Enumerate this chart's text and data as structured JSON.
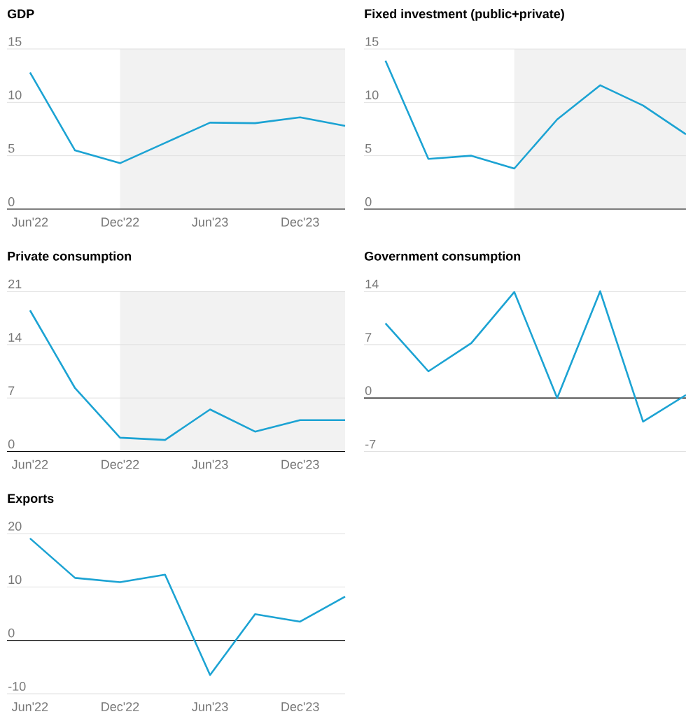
{
  "chart_data": [
    {
      "type": "line",
      "title": "GDP",
      "x": [
        "2022-06",
        "2022-09",
        "2022-12",
        "2023-03",
        "2023-06",
        "2023-09",
        "2023-12",
        "2024-03"
      ],
      "xlim": [
        "2022-04-15",
        "2024-03"
      ],
      "xticks": [
        {
          "value": "2022-06",
          "label": "Jun'22"
        },
        {
          "value": "2022-12",
          "label": "Dec'22"
        },
        {
          "value": "2023-06",
          "label": "Jun'23"
        },
        {
          "value": "2023-12",
          "label": "Dec'23"
        }
      ],
      "ylim": [
        0,
        15
      ],
      "yticks": [
        0,
        5,
        10,
        15
      ],
      "grid": "y",
      "bands": [
        {
          "axis": "x",
          "from": "2022-12",
          "to": "2024-03",
          "color": "#f2f2f2"
        }
      ],
      "series": [
        {
          "color": "#1ca3d3",
          "values": [
            12.8,
            5.5,
            4.3,
            6.2,
            8.1,
            8.05,
            8.6,
            7.8
          ]
        }
      ]
    },
    {
      "type": "line",
      "title": "Fixed investment (public+private)",
      "categories": [
        null,
        null,
        null,
        null,
        null,
        null,
        null,
        null
      ],
      "ylim": [
        0,
        15
      ],
      "yticks": [
        0,
        5,
        10,
        15
      ],
      "grid": "y",
      "tick_labels": "y",
      "series": [
        {
          "color": "#1ca3d3",
          "values": [
            13.9,
            4.7,
            5.0,
            3.8,
            8.4,
            11.6,
            9.7,
            7.0
          ]
        }
      ]
    },
    {
      "type": "line",
      "title": "Private consumption",
      "x": [
        "2022-06",
        "2022-09",
        "2022-12",
        "2023-03",
        "2023-06",
        "2023-09",
        "2023-12",
        "2024-03"
      ],
      "xlim": [
        "2022-04-15",
        "2024-03"
      ],
      "xticks": [
        {
          "value": "2022-06",
          "label": "Jun'22"
        },
        {
          "value": "2022-12",
          "label": "Dec'22"
        },
        {
          "value": "2023-06",
          "label": "Jun'23"
        },
        {
          "value": "2023-12",
          "label": "Dec'23"
        }
      ],
      "ylim": [
        0,
        21
      ],
      "yticks": [
        0,
        7,
        14,
        21
      ],
      "grid": "y",
      "bands": [
        {
          "axis": "x",
          "from": "2022-12",
          "to": "2024-03",
          "color": "#f2f2f2"
        }
      ],
      "series": [
        {
          "color": "#1ca3d3",
          "values": [
            18.5,
            8.3,
            1.8,
            1.5,
            5.5,
            2.6,
            4.1,
            4.1
          ]
        }
      ]
    },
    {
      "type": "line",
      "title": "Government consumption",
      "categories": [
        null,
        null,
        null,
        null,
        null,
        null,
        null,
        null
      ],
      "ylim": [
        -7,
        14
      ],
      "yticks": [
        -7,
        0,
        7,
        14
      ],
      "grid": "y",
      "tick_labels": "y",
      "ref_lines": [
        {
          "axis": "y",
          "value": 0,
          "color": "#000000"
        }
      ],
      "series": [
        {
          "color": "#1ca3d3",
          "values": [
            9.8,
            3.5,
            7.2,
            13.9,
            0,
            14,
            -3.1,
            0.4
          ]
        }
      ]
    },
    {
      "type": "line",
      "title": "Exports",
      "x": [
        "2022-06",
        "2022-09",
        "2022-12",
        "2023-03",
        "2023-06",
        "2023-09",
        "2023-12",
        "2024-03"
      ],
      "xlim": [
        "2022-04-15",
        "2024-03"
      ],
      "xticks": [
        {
          "value": "2022-06",
          "label": "Jun'22"
        },
        {
          "value": "2022-12",
          "label": "Dec'22"
        },
        {
          "value": "2023-06",
          "label": "Jun'23"
        },
        {
          "value": "2023-12",
          "label": "Dec'23"
        }
      ],
      "ylim": [
        -10,
        20
      ],
      "yticks": [
        -10,
        0,
        10,
        20
      ],
      "grid": "y",
      "ref_lines": [
        {
          "axis": "y",
          "value": 0,
          "color": "#000000"
        }
      ],
      "series": [
        {
          "color": "#1ca3d3",
          "values": [
            19.1,
            11.7,
            10.9,
            12.3,
            -6.5,
            4.9,
            3.5,
            8.2
          ]
        }
      ]
    }
  ]
}
